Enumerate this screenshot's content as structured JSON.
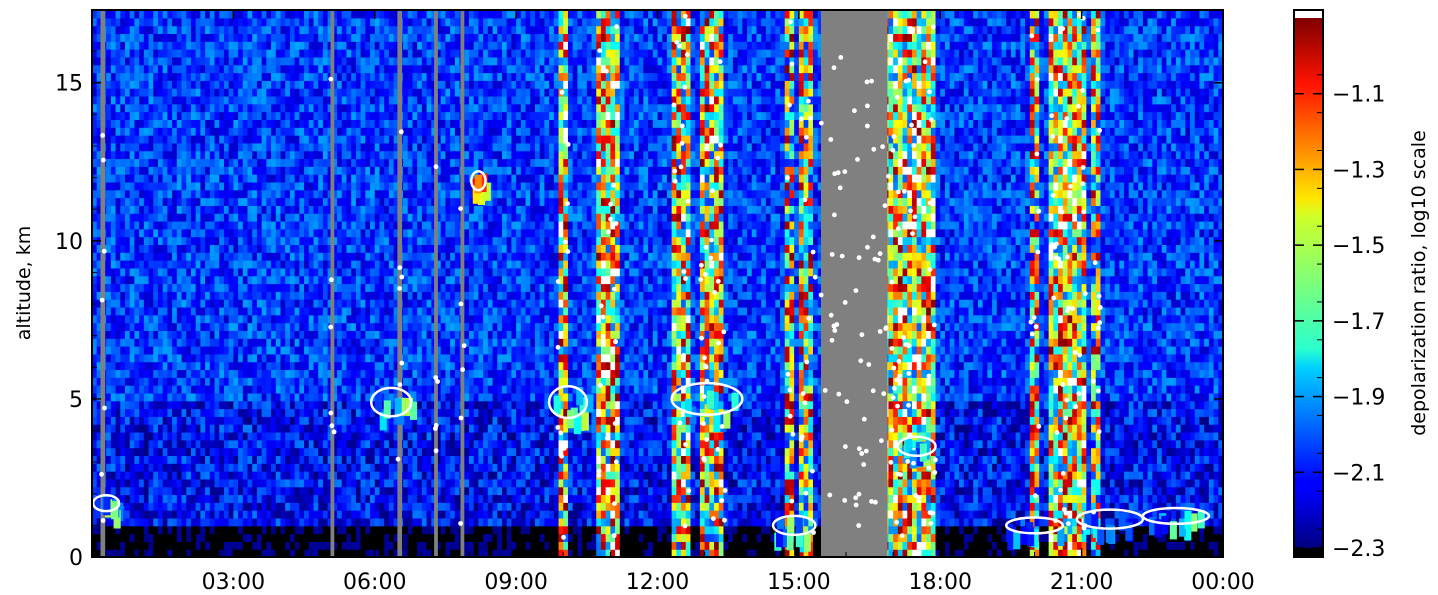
{
  "chart_data": {
    "type": "heatmap",
    "title": "",
    "xlabel": "",
    "ylabel": "altitude, km",
    "x_unit": "hours",
    "xlim": [
      0,
      24
    ],
    "ylim": [
      0,
      17.3
    ],
    "x_ticks": [
      {
        "value": 3,
        "label": "03:00"
      },
      {
        "value": 6,
        "label": "06:00"
      },
      {
        "value": 9,
        "label": "09:00"
      },
      {
        "value": 12,
        "label": "12:00"
      },
      {
        "value": 15,
        "label": "15:00"
      },
      {
        "value": 18,
        "label": "18:00"
      },
      {
        "value": 21,
        "label": "21:00"
      },
      {
        "value": 24,
        "label": "00:00"
      }
    ],
    "y_ticks": [
      {
        "value": 0,
        "label": "0"
      },
      {
        "value": 5,
        "label": "5"
      },
      {
        "value": 10,
        "label": "10"
      },
      {
        "value": 15,
        "label": "15"
      }
    ],
    "colorbar": {
      "label": "depolarization ratio, log10 scale",
      "scale": "log10",
      "range": [
        -2.3,
        -0.9
      ],
      "colormap": "jet",
      "ticks": [
        {
          "value": -1.1,
          "label": "−1.1"
        },
        {
          "value": -1.3,
          "label": "−1.3"
        },
        {
          "value": -1.5,
          "label": "−1.5"
        },
        {
          "value": -1.7,
          "label": "−1.7"
        },
        {
          "value": -1.9,
          "label": "−1.9"
        },
        {
          "value": -2.1,
          "label": "−2.1"
        },
        {
          "value": -2.3,
          "label": "−2.3"
        }
      ],
      "over_color": "#ffffff",
      "under_color": "#000000"
    },
    "no_data_color": "#808080",
    "background_value": -2.3,
    "upper_background_value": -2.05,
    "noisy_columns": [
      {
        "x_start": 9.88,
        "x_end": 10.12,
        "y_top": 17.3,
        "value": -1.4
      },
      {
        "x_start": 10.75,
        "x_end": 11.15,
        "y_top": 17.3,
        "value": -1.4
      },
      {
        "x_start": 12.35,
        "x_end": 12.7,
        "y_top": 17.3,
        "value": -1.45
      },
      {
        "x_start": 12.9,
        "x_end": 13.45,
        "y_top": 17.3,
        "value": -1.45
      },
      {
        "x_start": 14.75,
        "x_end": 14.92,
        "y_top": 17.3,
        "value": -1.5
      },
      {
        "x_start": 15.05,
        "x_end": 15.35,
        "y_top": 17.3,
        "value": -1.5
      },
      {
        "x_start": 16.8,
        "x_end": 17.55,
        "y_top": 17.3,
        "value": -1.4
      },
      {
        "x_start": 17.65,
        "x_end": 17.9,
        "y_top": 17.3,
        "value": -1.4
      },
      {
        "x_start": 19.9,
        "x_end": 20.1,
        "y_top": 17.3,
        "value": -1.55
      },
      {
        "x_start": 20.35,
        "x_end": 21.1,
        "y_top": 17.3,
        "value": -1.4
      },
      {
        "x_start": 21.2,
        "x_end": 21.4,
        "y_top": 17.3,
        "value": -1.55
      }
    ],
    "no_data_columns": [
      {
        "x_start": 0.18,
        "x_end": 0.28
      },
      {
        "x_start": 5.06,
        "x_end": 5.14
      },
      {
        "x_start": 6.48,
        "x_end": 6.58
      },
      {
        "x_start": 7.26,
        "x_end": 7.34
      },
      {
        "x_start": 7.82,
        "x_end": 7.9
      },
      {
        "x_start": 15.47,
        "x_end": 16.88
      }
    ],
    "cloud_patches": [
      {
        "x_center": 0.3,
        "y_center": 1.7,
        "x_width": 0.55,
        "y_height": 0.5,
        "value": -1.8
      },
      {
        "x_center": 6.35,
        "y_center": 4.9,
        "x_width": 0.85,
        "y_height": 0.9,
        "value": -1.8
      },
      {
        "x_center": 8.2,
        "y_center": 11.9,
        "x_width": 0.3,
        "y_height": 0.6,
        "value": -1.3
      },
      {
        "x_center": 10.1,
        "y_center": 4.9,
        "x_width": 0.8,
        "y_height": 1.0,
        "value": -1.8
      },
      {
        "x_center": 13.05,
        "y_center": 5.0,
        "x_width": 1.5,
        "y_height": 1.0,
        "value": -1.75
      },
      {
        "x_center": 14.9,
        "y_center": 1.0,
        "x_width": 0.9,
        "y_height": 0.6,
        "value": -1.85
      },
      {
        "x_center": 17.5,
        "y_center": 3.5,
        "x_width": 0.8,
        "y_height": 0.6,
        "value": -1.8
      },
      {
        "x_center": 20.0,
        "y_center": 1.0,
        "x_width": 1.2,
        "y_height": 0.5,
        "value": -1.85
      },
      {
        "x_center": 21.6,
        "y_center": 1.2,
        "x_width": 1.4,
        "y_height": 0.6,
        "value": -1.85
      },
      {
        "x_center": 23.0,
        "y_center": 1.3,
        "x_width": 1.4,
        "y_height": 0.5,
        "value": -1.85
      }
    ],
    "grid": false,
    "legend": "colorbar-right"
  }
}
